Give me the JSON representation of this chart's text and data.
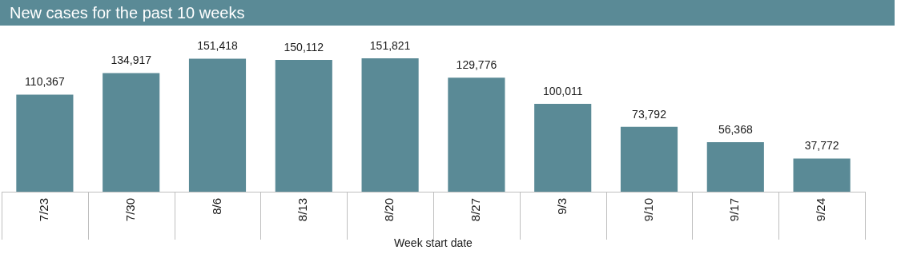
{
  "chart_data": {
    "type": "bar",
    "title": "New cases for the past 10 weeks",
    "xlabel": "Week start date",
    "categories": [
      "7/23",
      "7/30",
      "8/6",
      "8/13",
      "8/20",
      "8/27",
      "9/3",
      "9/10",
      "9/17",
      "9/24"
    ],
    "values": [
      110367,
      134917,
      151418,
      150112,
      151821,
      129776,
      100011,
      73792,
      56368,
      37772
    ],
    "value_labels": [
      "110,367",
      "134,917",
      "151,418",
      "150,112",
      "151,821",
      "129,776",
      "100,011",
      "73,792",
      "56,368",
      "37,772"
    ],
    "color": "#5a8a96",
    "tick_labels": "x",
    "grid": false,
    "legend": false
  }
}
